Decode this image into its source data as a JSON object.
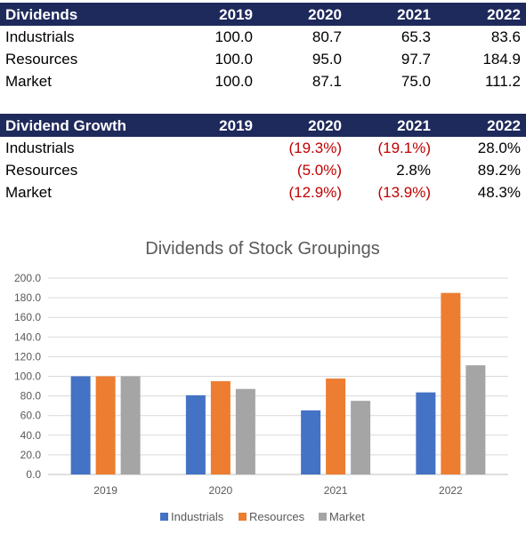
{
  "dividends_table": {
    "title": "Dividends",
    "years": [
      "2019",
      "2020",
      "2021",
      "2022"
    ],
    "rows": [
      {
        "label": "Industrials",
        "values": [
          "100.0",
          "80.7",
          "65.3",
          "83.6"
        ]
      },
      {
        "label": "Resources",
        "values": [
          "100.0",
          "95.0",
          "97.7",
          "184.9"
        ]
      },
      {
        "label": "Market",
        "values": [
          "100.0",
          "87.1",
          "75.0",
          "111.2"
        ]
      }
    ]
  },
  "growth_table": {
    "title": "Dividend Growth",
    "years": [
      "2019",
      "2020",
      "2021",
      "2022"
    ],
    "rows": [
      {
        "label": "Industrials",
        "values": [
          "",
          "(19.3%)",
          "(19.1%)",
          "28.0%"
        ]
      },
      {
        "label": "Resources",
        "values": [
          "",
          "(5.0%)",
          "2.8%",
          "89.2%"
        ]
      },
      {
        "label": "Market",
        "values": [
          "",
          "(12.9%)",
          "(13.9%)",
          "48.3%"
        ]
      }
    ]
  },
  "chart_data": {
    "type": "bar",
    "title": "Dividends of Stock Groupings",
    "categories": [
      "2019",
      "2020",
      "2021",
      "2022"
    ],
    "series": [
      {
        "name": "Industrials",
        "color": "#4472c4",
        "values": [
          100.0,
          80.7,
          65.3,
          83.6
        ]
      },
      {
        "name": "Resources",
        "color": "#ed7d31",
        "values": [
          100.0,
          95.0,
          97.7,
          184.9
        ]
      },
      {
        "name": "Market",
        "color": "#a5a5a5",
        "values": [
          100.0,
          87.1,
          75.0,
          111.2
        ]
      }
    ],
    "ylim": [
      0,
      200
    ],
    "yticks": [
      "0.0",
      "20.0",
      "40.0",
      "60.0",
      "80.0",
      "100.0",
      "120.0",
      "140.0",
      "160.0",
      "180.0",
      "200.0"
    ],
    "grid": true,
    "legend": "bottom",
    "xlabel": "",
    "ylabel": ""
  }
}
